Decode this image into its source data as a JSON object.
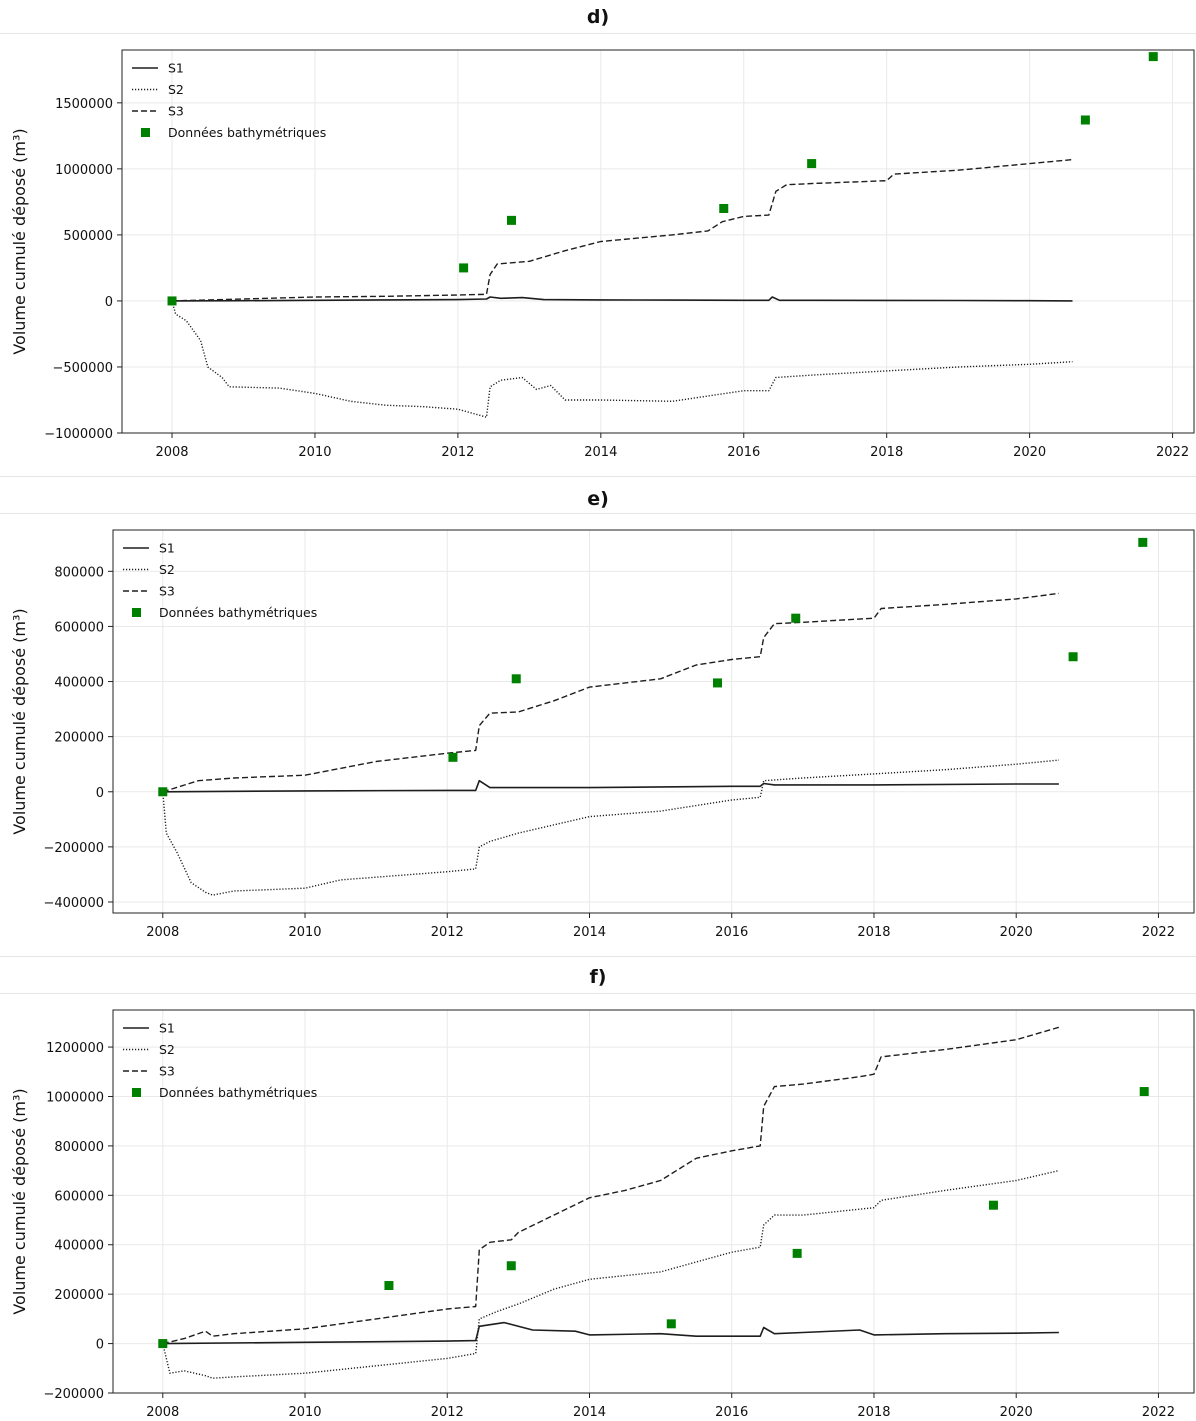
{
  "chart_data": [
    {
      "type": "line",
      "panel_label": "d)",
      "ylabel": "Volume cumulé déposé (m³)",
      "xlim": [
        2007.3,
        2022.3
      ],
      "ylim": [
        -1000000,
        1900000
      ],
      "xticks": [
        2008,
        2010,
        2012,
        2014,
        2016,
        2018,
        2020,
        2022
      ],
      "yticks": [
        -1000000,
        -500000,
        0,
        500000,
        1000000,
        1500000
      ],
      "ytick_labels": [
        "−1000000",
        "−500000",
        "0",
        "500000",
        "1000000",
        "1500000"
      ],
      "grid": true,
      "legend_position": "top-left",
      "legend": [
        "S1",
        "S2",
        "S3",
        "Données bathymétriques"
      ],
      "series": [
        {
          "name": "S1",
          "style": "solid",
          "x": [
            2008,
            2009,
            2010,
            2011,
            2012,
            2012.4,
            2012.45,
            2012.6,
            2012.9,
            2013.2,
            2014,
            2015,
            2016,
            2016.35,
            2016.4,
            2016.5,
            2017,
            2018,
            2019,
            2020,
            2020.6
          ],
          "y": [
            0,
            2000,
            5000,
            8000,
            10000,
            15000,
            30000,
            20000,
            25000,
            10000,
            8000,
            6000,
            5000,
            5000,
            30000,
            5000,
            5000,
            4000,
            3000,
            2000,
            0
          ]
        },
        {
          "name": "S2",
          "style": "dotted",
          "x": [
            2008,
            2008.05,
            2008.2,
            2008.4,
            2008.5,
            2008.7,
            2008.8,
            2009.5,
            2010,
            2010.5,
            2011,
            2011.5,
            2012,
            2012.4,
            2012.45,
            2012.6,
            2012.9,
            2013.1,
            2013.3,
            2013.5,
            2014,
            2015,
            2015.5,
            2016,
            2016.35,
            2016.45,
            2017,
            2018,
            2019,
            2020,
            2020.6
          ],
          "y": [
            0,
            -100000,
            -150000,
            -300000,
            -500000,
            -580000,
            -650000,
            -660000,
            -700000,
            -760000,
            -790000,
            -800000,
            -820000,
            -880000,
            -650000,
            -600000,
            -580000,
            -670000,
            -640000,
            -750000,
            -750000,
            -760000,
            -720000,
            -680000,
            -680000,
            -580000,
            -560000,
            -530000,
            -500000,
            -480000,
            -460000
          ]
        },
        {
          "name": "S3",
          "style": "dashed",
          "x": [
            2008,
            2009,
            2010,
            2011,
            2012,
            2012.4,
            2012.45,
            2012.55,
            2013,
            2013.5,
            2014,
            2015,
            2015.5,
            2015.7,
            2016,
            2016.35,
            2016.45,
            2016.6,
            2017,
            2018,
            2018.1,
            2019,
            2020,
            2020.6
          ],
          "y": [
            0,
            15000,
            30000,
            35000,
            45000,
            50000,
            200000,
            280000,
            300000,
            380000,
            450000,
            500000,
            530000,
            600000,
            640000,
            650000,
            830000,
            880000,
            890000,
            910000,
            960000,
            990000,
            1040000,
            1070000
          ]
        }
      ],
      "points": {
        "name": "Données bathymétriques",
        "color": "#008000",
        "x": [
          2008,
          2012.08,
          2012.75,
          2015.72,
          2016.95,
          2020.78,
          2021.73
        ],
        "y": [
          0,
          250000,
          610000,
          700000,
          1040000,
          1370000,
          1850000
        ]
      }
    },
    {
      "type": "line",
      "panel_label": "e)",
      "ylabel": "Volume cumulé déposé (m³)",
      "xlim": [
        2007.3,
        2022.5
      ],
      "ylim": [
        -440000,
        950000
      ],
      "xticks": [
        2008,
        2010,
        2012,
        2014,
        2016,
        2018,
        2020,
        2022
      ],
      "yticks": [
        -400000,
        -200000,
        0,
        200000,
        400000,
        600000,
        800000
      ],
      "ytick_labels": [
        "−400000",
        "−200000",
        "0",
        "200000",
        "400000",
        "600000",
        "800000"
      ],
      "grid": true,
      "legend_position": "top-left",
      "legend": [
        "S1",
        "S2",
        "S3",
        "Données bathymétriques"
      ],
      "series": [
        {
          "name": "S1",
          "style": "solid",
          "x": [
            2008,
            2010,
            2012,
            2012.4,
            2012.45,
            2012.6,
            2014,
            2016,
            2016.4,
            2016.45,
            2016.6,
            2018,
            2020,
            2020.6
          ],
          "y": [
            0,
            3000,
            5000,
            5000,
            40000,
            15000,
            15000,
            20000,
            20000,
            30000,
            25000,
            25000,
            28000,
            28000
          ]
        },
        {
          "name": "S2",
          "style": "dotted",
          "x": [
            2008,
            2008.05,
            2008.2,
            2008.4,
            2008.6,
            2008.7,
            2009,
            2010,
            2010.5,
            2011,
            2012,
            2012.4,
            2012.45,
            2012.6,
            2013,
            2014,
            2015,
            2016,
            2016.4,
            2016.45,
            2017,
            2018,
            2019,
            2020,
            2020.6
          ],
          "y": [
            0,
            -150000,
            -220000,
            -330000,
            -365000,
            -375000,
            -360000,
            -350000,
            -320000,
            -310000,
            -290000,
            -280000,
            -200000,
            -180000,
            -150000,
            -90000,
            -70000,
            -30000,
            -20000,
            40000,
            50000,
            65000,
            80000,
            100000,
            115000
          ]
        },
        {
          "name": "S3",
          "style": "dashed",
          "x": [
            2008,
            2008.5,
            2009,
            2010,
            2011,
            2012,
            2012.4,
            2012.45,
            2012.6,
            2013,
            2013.5,
            2014,
            2015,
            2015.5,
            2016,
            2016.4,
            2016.45,
            2016.6,
            2017,
            2018,
            2018.1,
            2019,
            2020,
            2020.6
          ],
          "y": [
            0,
            40000,
            50000,
            60000,
            110000,
            140000,
            150000,
            240000,
            285000,
            290000,
            330000,
            380000,
            410000,
            460000,
            480000,
            490000,
            560000,
            610000,
            615000,
            630000,
            665000,
            680000,
            700000,
            720000
          ]
        }
      ],
      "points": {
        "name": "Données bathymétriques",
        "color": "#008000",
        "x": [
          2008,
          2012.08,
          2012.97,
          2015.8,
          2016.9,
          2020.8,
          2021.78
        ],
        "y": [
          0,
          125000,
          410000,
          395000,
          630000,
          490000,
          905000
        ]
      }
    },
    {
      "type": "line",
      "panel_label": "f)",
      "ylabel": "Volume cumulé déposé (m³)",
      "xlim": [
        2007.3,
        2022.5
      ],
      "ylim": [
        -200000,
        1350000
      ],
      "xticks": [
        2008,
        2010,
        2012,
        2014,
        2016,
        2018,
        2020,
        2022
      ],
      "yticks": [
        -200000,
        0,
        200000,
        400000,
        600000,
        800000,
        1000000,
        1200000
      ],
      "ytick_labels": [
        "−200000",
        "0",
        "200000",
        "400000",
        "600000",
        "800000",
        "1000000",
        "1200000"
      ],
      "grid": true,
      "legend_position": "top-left",
      "legend": [
        "S1",
        "S2",
        "S3",
        "Données bathymétriques"
      ],
      "series": [
        {
          "name": "S1",
          "style": "solid",
          "x": [
            2008,
            2010,
            2012,
            2012.4,
            2012.45,
            2012.8,
            2013.2,
            2013.8,
            2014,
            2015,
            2015.5,
            2016,
            2016.4,
            2016.45,
            2016.6,
            2017,
            2017.8,
            2018,
            2019,
            2020,
            2020.6
          ],
          "y": [
            0,
            5000,
            10000,
            12000,
            70000,
            85000,
            55000,
            50000,
            35000,
            40000,
            30000,
            30000,
            30000,
            65000,
            40000,
            45000,
            55000,
            35000,
            40000,
            42000,
            45000
          ]
        },
        {
          "name": "S2",
          "style": "dotted",
          "x": [
            2008,
            2008.1,
            2008.3,
            2008.6,
            2008.7,
            2009,
            2010,
            2011,
            2012,
            2012.4,
            2012.45,
            2012.7,
            2013,
            2013.5,
            2014,
            2015,
            2015.5,
            2016,
            2016.4,
            2016.45,
            2016.6,
            2017,
            2018,
            2018.1,
            2019,
            2020,
            2020.6
          ],
          "y": [
            0,
            -120000,
            -110000,
            -130000,
            -140000,
            -135000,
            -120000,
            -90000,
            -60000,
            -40000,
            100000,
            130000,
            160000,
            220000,
            260000,
            290000,
            330000,
            370000,
            390000,
            480000,
            520000,
            520000,
            550000,
            580000,
            620000,
            660000,
            700000
          ]
        },
        {
          "name": "S3",
          "style": "dashed",
          "x": [
            2008,
            2008.3,
            2008.6,
            2008.7,
            2009,
            2010,
            2011,
            2012,
            2012.4,
            2012.45,
            2012.6,
            2012.9,
            2013,
            2013.5,
            2014,
            2014.5,
            2015,
            2015.5,
            2016,
            2016.4,
            2016.45,
            2016.6,
            2017,
            2017.8,
            2018,
            2018.1,
            2019,
            2020,
            2020.6
          ],
          "y": [
            0,
            20000,
            50000,
            30000,
            40000,
            60000,
            100000,
            140000,
            150000,
            380000,
            410000,
            420000,
            450000,
            520000,
            590000,
            620000,
            660000,
            750000,
            780000,
            800000,
            960000,
            1040000,
            1050000,
            1080000,
            1090000,
            1160000,
            1190000,
            1230000,
            1280000
          ]
        }
      ],
      "points": {
        "name": "Données bathymétriques",
        "color": "#008000",
        "x": [
          2008,
          2011.18,
          2012.9,
          2015.15,
          2016.92,
          2019.68,
          2021.8
        ],
        "y": [
          0,
          235000,
          315000,
          80000,
          365000,
          560000,
          1020000
        ]
      }
    }
  ]
}
